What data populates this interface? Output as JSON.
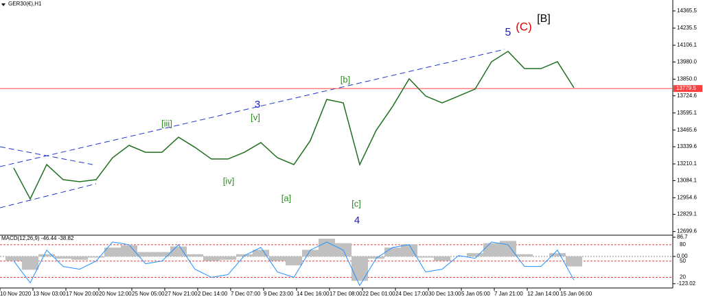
{
  "chart_data": [
    {
      "type": "line",
      "title": "GER30(€),H1",
      "categories": [
        "10 Nov 2020",
        null,
        "13 Nov 03:00",
        null,
        "17 Nov 20:00",
        null,
        "20 Nov 12:00",
        null,
        "25 Nov 05:00",
        null,
        "27 Nov 21:00",
        null,
        "2 Dec 14:00",
        null,
        "7 Dec 07:00",
        null,
        "9 Dec 23:00",
        null,
        "14 Dec 16:00",
        null,
        "17 Dec 08:00",
        null,
        "22 Dec 01:00",
        null,
        "24 Dec 17:00",
        null,
        "30 Dec 13:00",
        null,
        "5 Jan 05:00",
        null,
        "7 Jan 21:00",
        null,
        "12 Jan 14:00",
        null,
        "15 Jan 06:00"
      ],
      "series": [
        {
          "name": "GER30",
          "color": "#1f6f1f",
          "values": [
            13179,
            12946,
            13205,
            13091,
            13076,
            13091,
            13257,
            13350,
            13298,
            13298,
            13412,
            13335,
            13247,
            13247,
            13298,
            13371,
            13257,
            13205,
            13386,
            13697,
            13671,
            13205,
            13464,
            13645,
            13853,
            13723,
            13671,
            13723,
            13775,
            13982,
            14060,
            13930,
            13930,
            13982,
            13785
          ]
        }
      ],
      "ylim": [
        12677,
        14448
      ],
      "yticks": [
        14365.5,
        14235.5,
        14106.1,
        {
          "value": 13980,
          "label": "13980.0"
        },
        {
          "value": 13850,
          "label": "13850.0"
        },
        13724.6,
        13595.1,
        13465.6,
        13339.6,
        13210.1,
        13084.1,
        12954.6,
        12829.1,
        12699.6
      ],
      "level": 13779.5,
      "level_color": "#ff4040",
      "annotations": [
        {
          "text": "[B]",
          "color": "#000000"
        },
        {
          "text": "(C)",
          "color": "#e00000"
        },
        {
          "text": "5",
          "color": "#1a1acc"
        },
        {
          "text": "[b]",
          "color": "#2e8b22"
        },
        {
          "text": "3",
          "color": "#1a1acc"
        },
        {
          "text": "[v]",
          "color": "#2e8b22"
        },
        {
          "text": "[iii]",
          "color": "#2e8b22"
        },
        {
          "text": "[iv]",
          "color": "#2e8b22"
        },
        {
          "text": "[a]",
          "color": "#2e8b22"
        },
        {
          "text": "[c]",
          "color": "#2e8b22"
        },
        {
          "text": "4",
          "color": "#1a1acc"
        }
      ]
    },
    {
      "type": "bar",
      "title": "MACD(12,26,9) -46.44 -38.82",
      "series": [
        {
          "name": "MACD",
          "color": "#c0c0c0",
          "values": [
            -20,
            -60,
            10,
            -10,
            -15,
            -5,
            40,
            50,
            20,
            20,
            45,
            10,
            -20,
            -15,
            10,
            30,
            -20,
            -40,
            30,
            80,
            60,
            -110,
            -10,
            40,
            55,
            -5,
            -20,
            0,
            15,
            60,
            70,
            10,
            0,
            15,
            -45
          ]
        },
        {
          "name": "Stochastic",
          "color": "#1e90ff",
          "axis": "y2",
          "values": [
            50,
            10,
            70,
            40,
            35,
            50,
            85,
            80,
            45,
            50,
            80,
            35,
            20,
            25,
            60,
            75,
            30,
            20,
            70,
            85,
            70,
            5,
            55,
            75,
            80,
            30,
            35,
            60,
            55,
            85,
            80,
            40,
            40,
            70,
            15
          ]
        }
      ],
      "ylim": [
        -136,
        89.8
      ],
      "yticks": [
        86.7,
        {
          "value": 0,
          "label": "0.00"
        },
        -123.02
      ],
      "y2lim": [
        3,
        95
      ],
      "y2ticks": [
        80,
        50,
        20
      ]
    }
  ]
}
